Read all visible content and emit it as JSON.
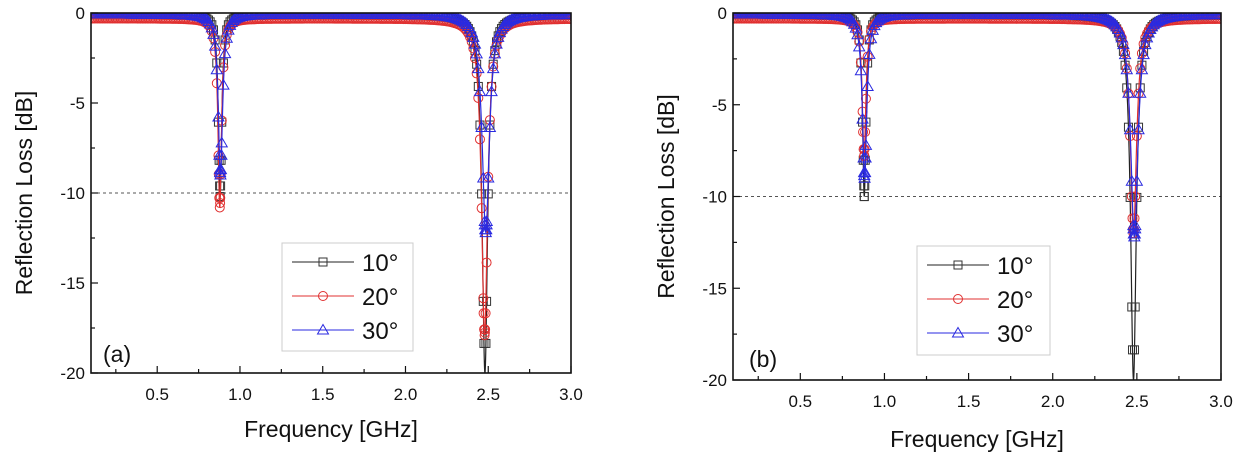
{
  "chart_data": [
    {
      "type": "line",
      "panel_label": "(a)",
      "xlabel": "Frequency [GHz]",
      "ylabel": "Reflection Loss [dB]",
      "xlim": [
        0.1,
        3.0
      ],
      "ylim": [
        -20,
        0
      ],
      "xticks": [
        0.5,
        1.0,
        1.5,
        2.0,
        2.5,
        3.0
      ],
      "xtick_labels": [
        "0.5",
        "1.0",
        "1.5",
        "2.0",
        "2.5",
        "3.0"
      ],
      "yticks": [
        0,
        -5,
        -10,
        -15,
        -20
      ],
      "ytick_labels": [
        "0",
        "-5",
        "-10",
        "-15",
        "-20"
      ],
      "reference_line": -10,
      "legend": "bottom-center",
      "series": [
        {
          "name": "10°",
          "color": "#222222",
          "marker": "square",
          "baseline": -0.1,
          "resonances": [
            {
              "freq": 0.88,
              "min_db": -10.2,
              "width": 0.012
            },
            {
              "freq": 2.48,
              "min_db": -20,
              "width": 0.02
            }
          ]
        },
        {
          "name": "20°",
          "color": "#e03030",
          "marker": "circle",
          "baseline": -0.3,
          "resonances": [
            {
              "freq": 0.878,
              "min_db": -10.8,
              "width": 0.013
            },
            {
              "freq": 2.478,
              "min_db": -17.9,
              "width": 0.022
            }
          ]
        },
        {
          "name": "30°",
          "color": "#2a2ae0",
          "marker": "triangle",
          "baseline": -0.05,
          "resonances": [
            {
              "freq": 0.882,
              "min_db": -9.0,
              "width": 0.016
            },
            {
              "freq": 2.485,
              "min_db": -12.2,
              "width": 0.026
            }
          ]
        }
      ]
    },
    {
      "type": "line",
      "panel_label": "(b)",
      "xlabel": "Frequency [GHz]",
      "ylabel": "Reflection Loss [dB]",
      "xlim": [
        0.1,
        3.0
      ],
      "ylim": [
        -20,
        0
      ],
      "xticks": [
        0.5,
        1.0,
        1.5,
        2.0,
        2.5,
        3.0
      ],
      "xtick_labels": [
        "0.5",
        "1.0",
        "1.5",
        "2.0",
        "2.5",
        "3.0"
      ],
      "yticks": [
        0,
        -5,
        -10,
        -15,
        -20
      ],
      "ytick_labels": [
        "0",
        "-5",
        "-10",
        "-15",
        "-20"
      ],
      "reference_line": -10,
      "legend": "bottom-center",
      "series": [
        {
          "name": "10°",
          "color": "#222222",
          "marker": "square",
          "baseline": -0.1,
          "resonances": [
            {
              "freq": 0.88,
              "min_db": -10.0,
              "width": 0.012
            },
            {
              "freq": 2.48,
              "min_db": -20,
              "width": 0.02
            }
          ]
        },
        {
          "name": "20°",
          "color": "#e03030",
          "marker": "circle",
          "baseline": -0.3,
          "resonances": [
            {
              "freq": 0.879,
              "min_db": -7.8,
              "width": 0.013
            },
            {
              "freq": 2.48,
              "min_db": -12.0,
              "width": 0.022
            }
          ]
        },
        {
          "name": "30°",
          "color": "#2a2ae0",
          "marker": "triangle",
          "baseline": -0.05,
          "resonances": [
            {
              "freq": 0.882,
              "min_db": -9.0,
              "width": 0.016
            },
            {
              "freq": 2.485,
              "min_db": -12.2,
              "width": 0.026
            }
          ]
        }
      ]
    }
  ]
}
